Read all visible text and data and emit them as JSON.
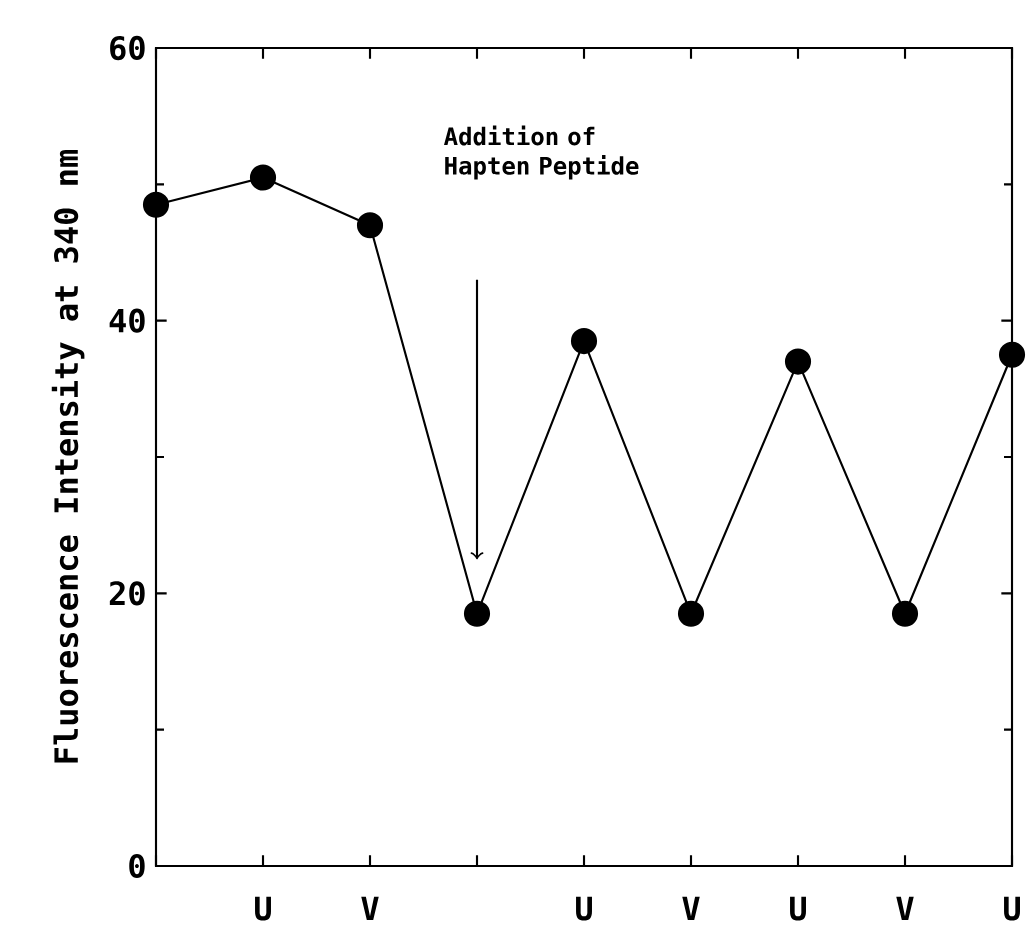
{
  "chart_data": {
    "type": "line",
    "ylabel": "Fluorescence Intensity at 340 nm",
    "categories": [
      null,
      "U",
      "V",
      null,
      "U",
      "V",
      "U",
      "V",
      "U"
    ],
    "series": [
      {
        "color": "#000000",
        "values": [
          48.5,
          50.5,
          47,
          18.5,
          38.5,
          18.5,
          37,
          18.5,
          37.5
        ]
      }
    ],
    "ylim": [
      0,
      60
    ],
    "yticks": [
      0,
      20,
      40,
      60
    ],
    "marker": "circle",
    "line_style": "solid",
    "grid": false,
    "annotations": [
      "Addition of Hapten Peptide"
    ]
  }
}
